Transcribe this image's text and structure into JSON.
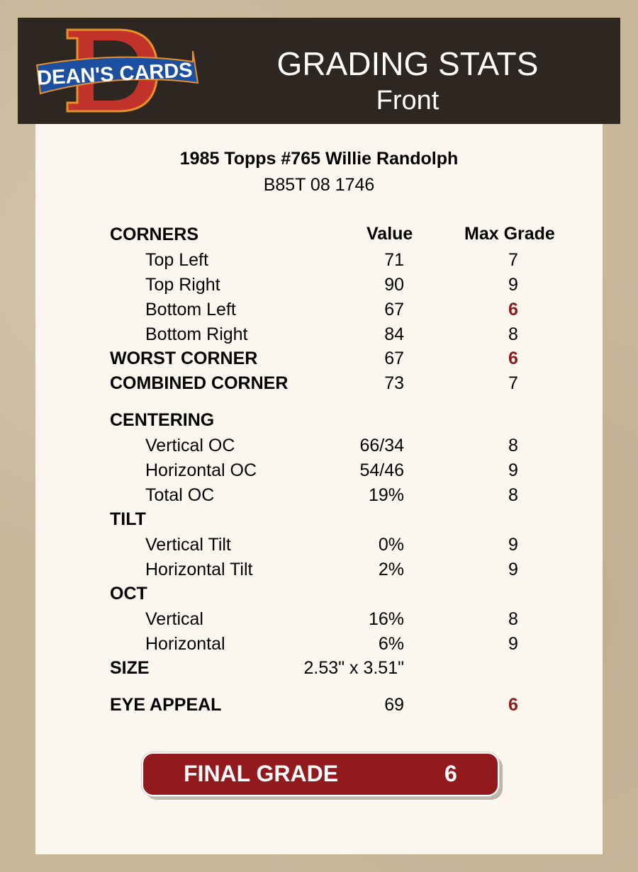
{
  "header": {
    "logo_text": "DEAN'S CARDS",
    "title": "GRADING STATS",
    "subtitle": "Front"
  },
  "card": {
    "name": "1985 Topps #765 Willie Randolph",
    "cert": "B85T 08 1746"
  },
  "columns": {
    "value": "Value",
    "max_grade": "Max Grade"
  },
  "rows": [
    {
      "label": "CORNERS",
      "section": true,
      "value": "",
      "max": "",
      "red": false
    },
    {
      "label": "Top Left",
      "section": false,
      "value": "71",
      "max": "7",
      "red": false
    },
    {
      "label": "Top Right",
      "section": false,
      "value": "90",
      "max": "9",
      "red": false
    },
    {
      "label": "Bottom Left",
      "section": false,
      "value": "67",
      "max": "6",
      "red": true
    },
    {
      "label": "Bottom Right",
      "section": false,
      "value": "84",
      "max": "8",
      "red": false
    },
    {
      "label": "WORST CORNER",
      "section": true,
      "value": "67",
      "max": "6",
      "red": true
    },
    {
      "label": "COMBINED CORNER",
      "section": true,
      "value": "73",
      "max": "7",
      "red": false
    },
    {
      "label": "CENTERING",
      "section": true,
      "value": "",
      "max": "",
      "red": false
    },
    {
      "label": "Vertical OC",
      "section": false,
      "value": "66/34",
      "max": "8",
      "red": false
    },
    {
      "label": "Horizontal OC",
      "section": false,
      "value": "54/46",
      "max": "9",
      "red": false
    },
    {
      "label": "Total OC",
      "section": false,
      "value": "19%",
      "max": "8",
      "red": false
    },
    {
      "label": "TILT",
      "section": true,
      "value": "",
      "max": "",
      "red": false
    },
    {
      "label": "Vertical Tilt",
      "section": false,
      "value": "0%",
      "max": "9",
      "red": false
    },
    {
      "label": "Horizontal Tilt",
      "section": false,
      "value": "2%",
      "max": "9",
      "red": false
    },
    {
      "label": "OCT",
      "section": true,
      "value": "",
      "max": "",
      "red": false
    },
    {
      "label": "Vertical",
      "section": false,
      "value": "16%",
      "max": "8",
      "red": false
    },
    {
      "label": "Horizontal",
      "section": false,
      "value": "6%",
      "max": "9",
      "red": false
    },
    {
      "label": "SIZE",
      "section": true,
      "value": "2.53\" x 3.51\"",
      "max": "",
      "red": false
    },
    {
      "label": "EYE APPEAL",
      "section": true,
      "value": "69",
      "max": "6",
      "red": true
    }
  ],
  "final": {
    "label": "FINAL GRADE",
    "value": "6"
  },
  "colors": {
    "header_bg": "#2e2620",
    "panel_bg": "#fcf7ee",
    "accent_red": "#921a1c",
    "grade_red": "#8b1c1c"
  }
}
